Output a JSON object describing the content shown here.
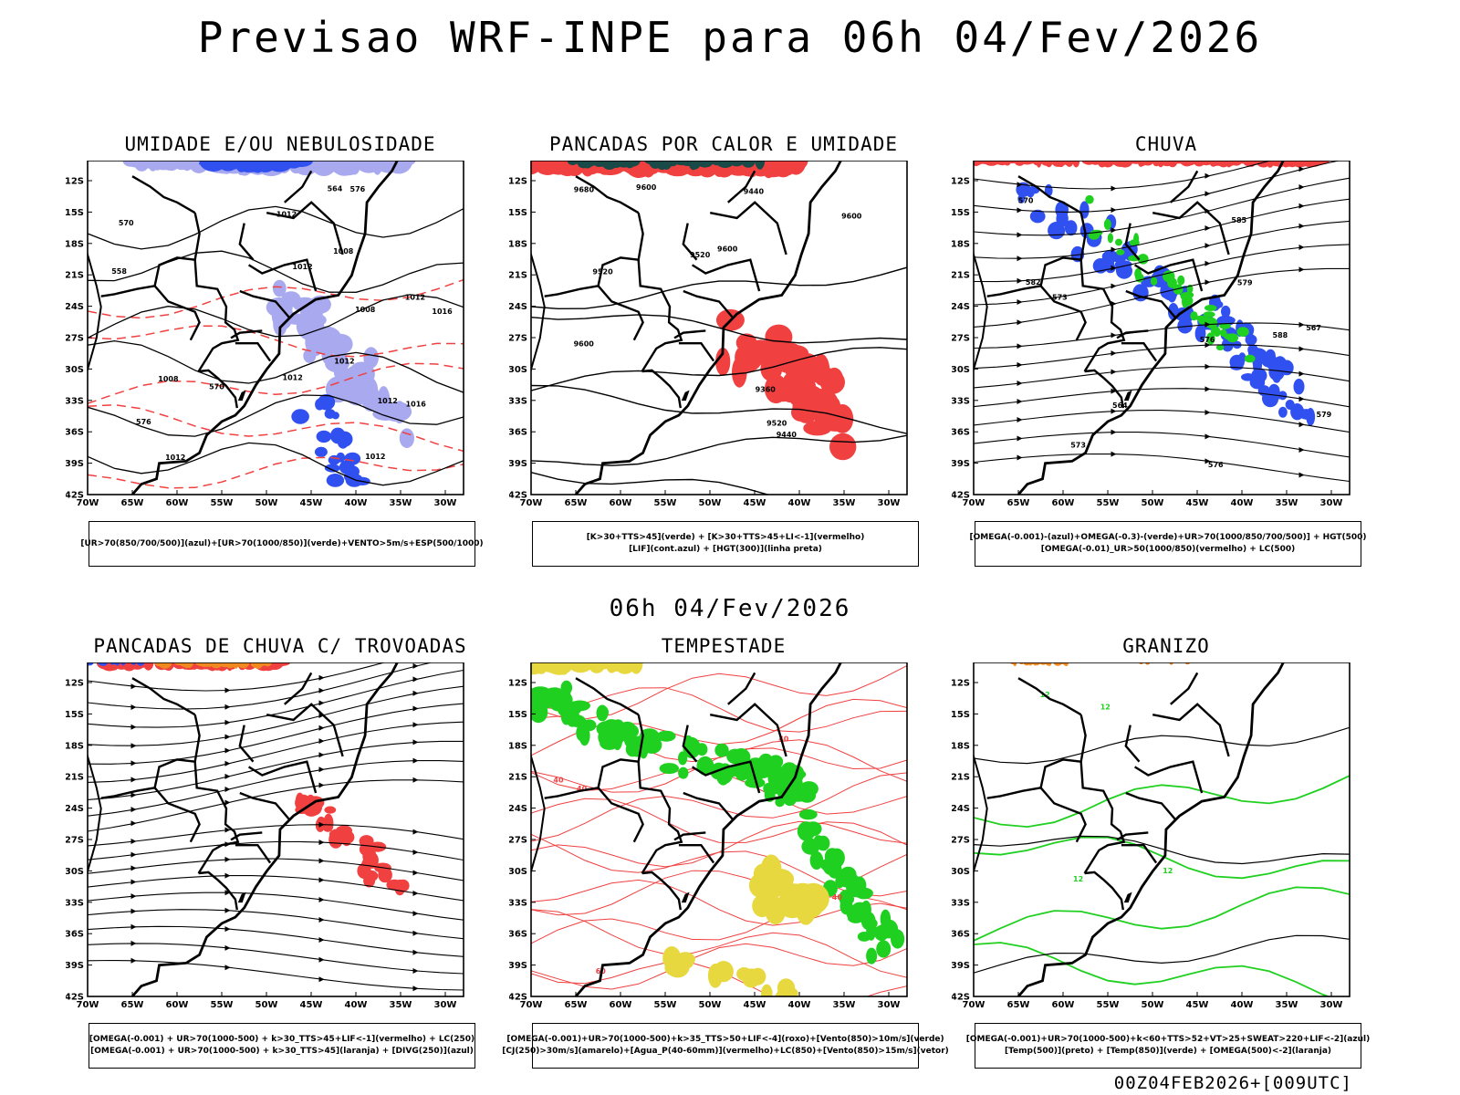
{
  "header": {
    "main_title": "Previsao WRF-INPE  para 06h 04/Fev/2026",
    "mid_title": "06h 04/Fev/2026",
    "footer_stamp": "00Z04FEB2026+[009UTC]"
  },
  "axes": {
    "lat_labels": [
      "12S",
      "15S",
      "18S",
      "21S",
      "24S",
      "27S",
      "30S",
      "33S",
      "36S",
      "39S",
      "42S"
    ],
    "lon_labels": [
      "70W",
      "65W",
      "60W",
      "55W",
      "50W",
      "45W",
      "40W",
      "35W",
      "30W"
    ]
  },
  "colors": {
    "blue": "#3050f0",
    "light_blue": "#a9a9f0",
    "green": "#20d020",
    "dark_green": "#1a4a48",
    "red": "#f04040",
    "orange": "#f08a20",
    "yellow": "#e8d840",
    "black": "#000000"
  },
  "panels": [
    {
      "title": "UMIDADE E/OU NEBULOSIDADE",
      "legend": [
        "[UR>70(850/700/500)](azul)+[UR>70(1000/850)](verde)+VENTO>5m/s+ESP(500/1000)"
      ],
      "contour_labels": [
        "1016",
        "1012",
        "1012",
        "1012",
        "1012",
        "1008",
        "1008",
        "1012",
        "1012",
        "1012",
        "1012",
        "1008",
        "1016",
        "576",
        "570",
        "564",
        "558",
        "576",
        "570"
      ]
    },
    {
      "title": "PANCADAS POR CALOR E UMIDADE",
      "legend": [
        "[K>30+TTS>45](verde) + [K>30+TTS>45+LI<-1](vermelho)",
        "[LIF](cont.azul) + [HGT(300)](linha preta)"
      ],
      "contour_labels": [
        "9600",
        "9600",
        "9520",
        "9520",
        "9440",
        "9440",
        "9360",
        "9520",
        "9680",
        "9600",
        "9600"
      ]
    },
    {
      "title": "CHUVA",
      "legend": [
        "[OMEGA(-0.001)-(azul)+OMEGA(-0.3)-(verde)+UR>70(1000/850/700/500)] + HGT(500)",
        "[OMEGA(-0.01)_UR>50(1000/850)(vermelho) + LC(500)"
      ],
      "contour_labels": [
        "582",
        "579",
        "576",
        "573",
        "570",
        "567",
        "564",
        "576",
        "573",
        "579",
        "585",
        "588"
      ]
    },
    {
      "title": "PANCADAS DE CHUVA C/ TROVOADAS",
      "legend": [
        "[OMEGA(-0.001) + UR>70(1000-500) + k>30_TTS>45+LIF<-1](vermelho) + LC(250)",
        "[OMEGA(-0.001) + UR>70(1000-500) + k>30_TTS>45](laranja) + [DIVG(250)](azul)"
      ],
      "contour_labels": []
    },
    {
      "title": "TEMPESTADE",
      "legend": [
        "[OMEGA(-0.001)+UR>70(1000-500)+k>35_TTS>50+LIF<-4](roxo)+[Vento(850)>10m/s](verde)",
        "[CJ(250)>30m/s](amarelo)+[Agua_P(40-60mm)](vermelho)+LC(850)+[Vento(850)>15m/s](vetor)"
      ],
      "contour_labels": [
        "40",
        "40",
        "40",
        "40",
        "60"
      ]
    },
    {
      "title": "GRANIZO",
      "legend": [
        "[OMEGA(-0.001)+UR>70(1000-500)+k<60+TTS>52+VT>25+SWEAT>220+LIF<-2](azul)",
        "[Temp(500)](preto) + [Temp(850)](verde) + [OMEGA(500)<-2](laranja)"
      ],
      "contour_labels": [
        "12",
        "12",
        "12",
        "12"
      ]
    }
  ]
}
